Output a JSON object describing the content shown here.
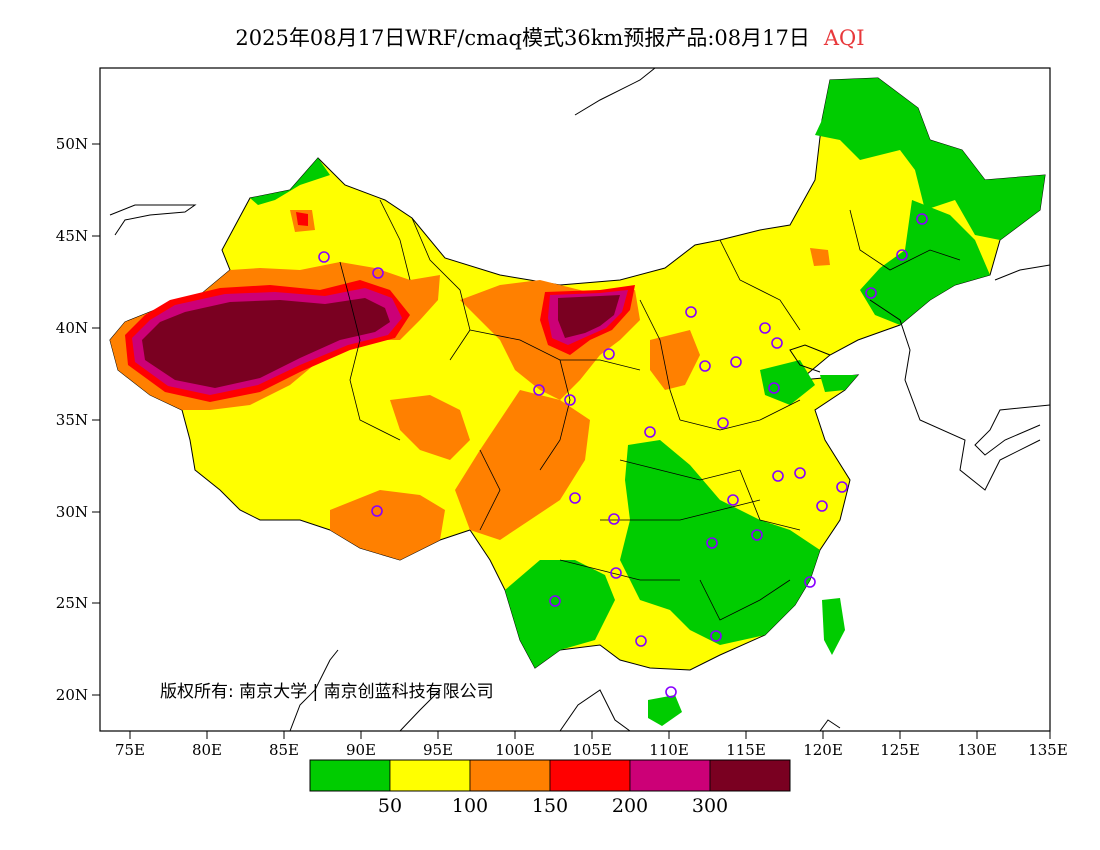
{
  "title": {
    "main": "2025年08月17日WRF/cmaq模式36km预报产品:08月17日",
    "variable": "AQI"
  },
  "axes": {
    "lat_ticks": [
      "50N",
      "45N",
      "40N",
      "35N",
      "30N",
      "25N",
      "20N"
    ],
    "lon_ticks": [
      "75E",
      "80E",
      "85E",
      "90E",
      "95E",
      "100E",
      "105E",
      "110E",
      "115E",
      "120E",
      "125E",
      "130E",
      "135E"
    ]
  },
  "credit": "版权所有: 南京大学 | 南京创蓝科技有限公司",
  "legend": {
    "colors": [
      "#00cc00",
      "#ffff00",
      "#ff8000",
      "#ff0000",
      "#cc0077",
      "#7a0021"
    ],
    "labels": [
      "50",
      "100",
      "150",
      "200",
      "300"
    ]
  },
  "colors": {
    "good": "#00cc00",
    "moderate": "#ffff00",
    "sensitive": "#ff8000",
    "unhealthy": "#ff0000",
    "very_unhealthy": "#cc0077",
    "hazardous": "#7a0021",
    "station_marker": "#8800ff"
  }
}
